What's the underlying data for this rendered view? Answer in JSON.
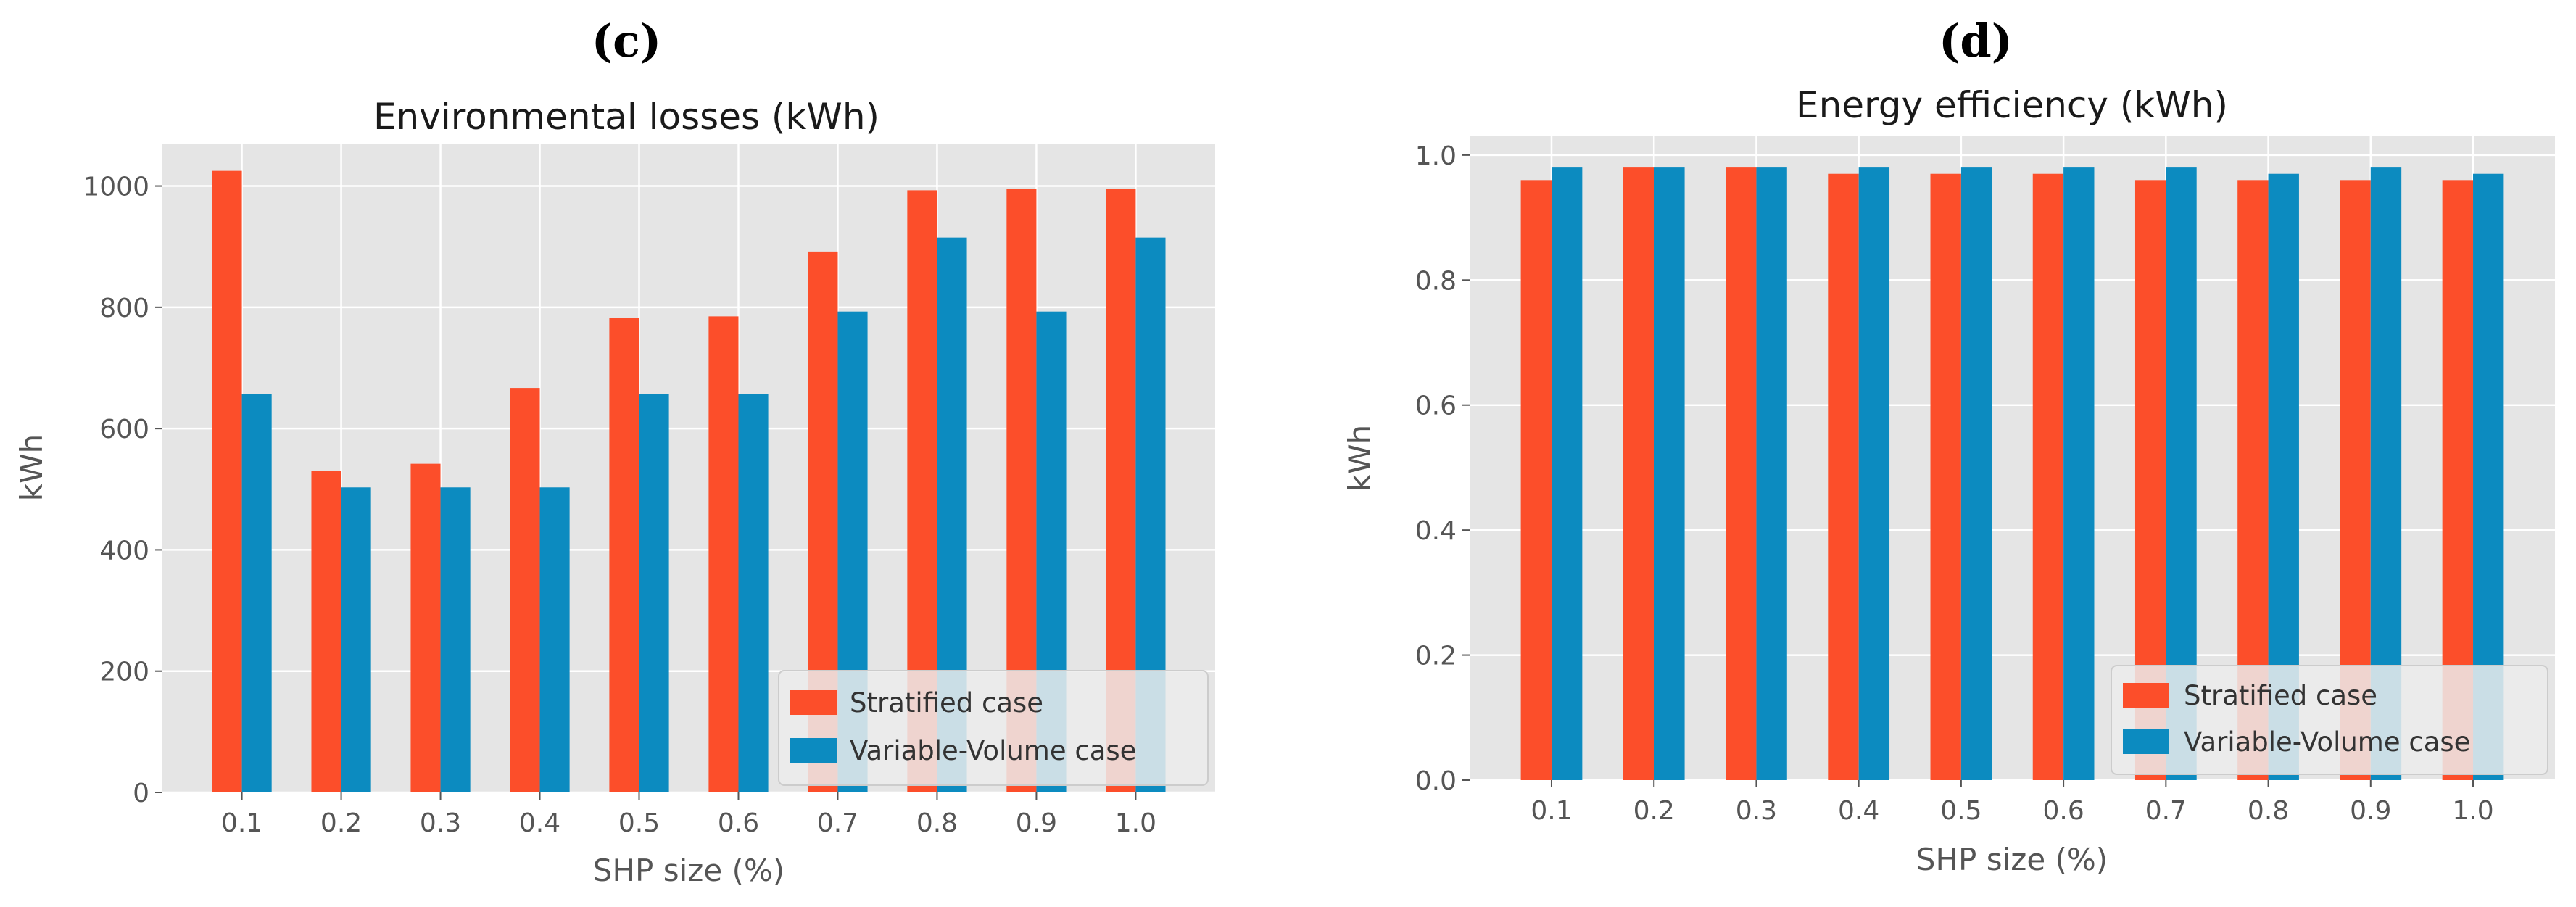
{
  "panels": [
    {
      "letter": "(c)"
    },
    {
      "letter": "(d)"
    }
  ],
  "colors": {
    "stratified": "#FC4E2A",
    "variable_volume": "#0C8BC0",
    "plot_bg": "#E5E5E5",
    "grid": "#FFFFFF"
  },
  "chart_data": [
    {
      "type": "bar",
      "title": "Environmental losses (kWh)",
      "xlabel": "SHP size (%)",
      "ylabel": "kWh",
      "categories": [
        "0.1",
        "0.2",
        "0.3",
        "0.4",
        "0.5",
        "0.6",
        "0.7",
        "0.8",
        "0.9",
        "1.0"
      ],
      "series": [
        {
          "name": "Stratified case",
          "values": [
            1025,
            530,
            542,
            667,
            782,
            785,
            892,
            993,
            995,
            995
          ]
        },
        {
          "name": "Variable-Volume case",
          "values": [
            657,
            503,
            503,
            503,
            657,
            657,
            793,
            915,
            793,
            915
          ]
        }
      ],
      "ylim": [
        0,
        1070
      ],
      "yticks": [
        0,
        200,
        400,
        600,
        800,
        1000
      ],
      "ytick_labels": [
        "0",
        "200",
        "400",
        "600",
        "800",
        "1000"
      ],
      "legend_position": "lower-right",
      "grid": true
    },
    {
      "type": "bar",
      "title": "Energy efficiency (kWh)",
      "xlabel": "SHP size (%)",
      "ylabel": "kWh",
      "categories": [
        "0.1",
        "0.2",
        "0.3",
        "0.4",
        "0.5",
        "0.6",
        "0.7",
        "0.8",
        "0.9",
        "1.0"
      ],
      "series": [
        {
          "name": "Stratified case",
          "values": [
            0.96,
            0.98,
            0.98,
            0.97,
            0.97,
            0.97,
            0.96,
            0.96,
            0.96,
            0.96
          ]
        },
        {
          "name": "Variable-Volume case",
          "values": [
            0.98,
            0.98,
            0.98,
            0.98,
            0.98,
            0.98,
            0.98,
            0.97,
            0.98,
            0.97
          ]
        }
      ],
      "ylim": [
        0,
        1.03
      ],
      "yticks": [
        0,
        0.2,
        0.4,
        0.6,
        0.8,
        1.0
      ],
      "ytick_labels": [
        "0.0",
        "0.2",
        "0.4",
        "0.6",
        "0.8",
        "1.0"
      ],
      "legend_position": "lower-right",
      "grid": true
    }
  ]
}
